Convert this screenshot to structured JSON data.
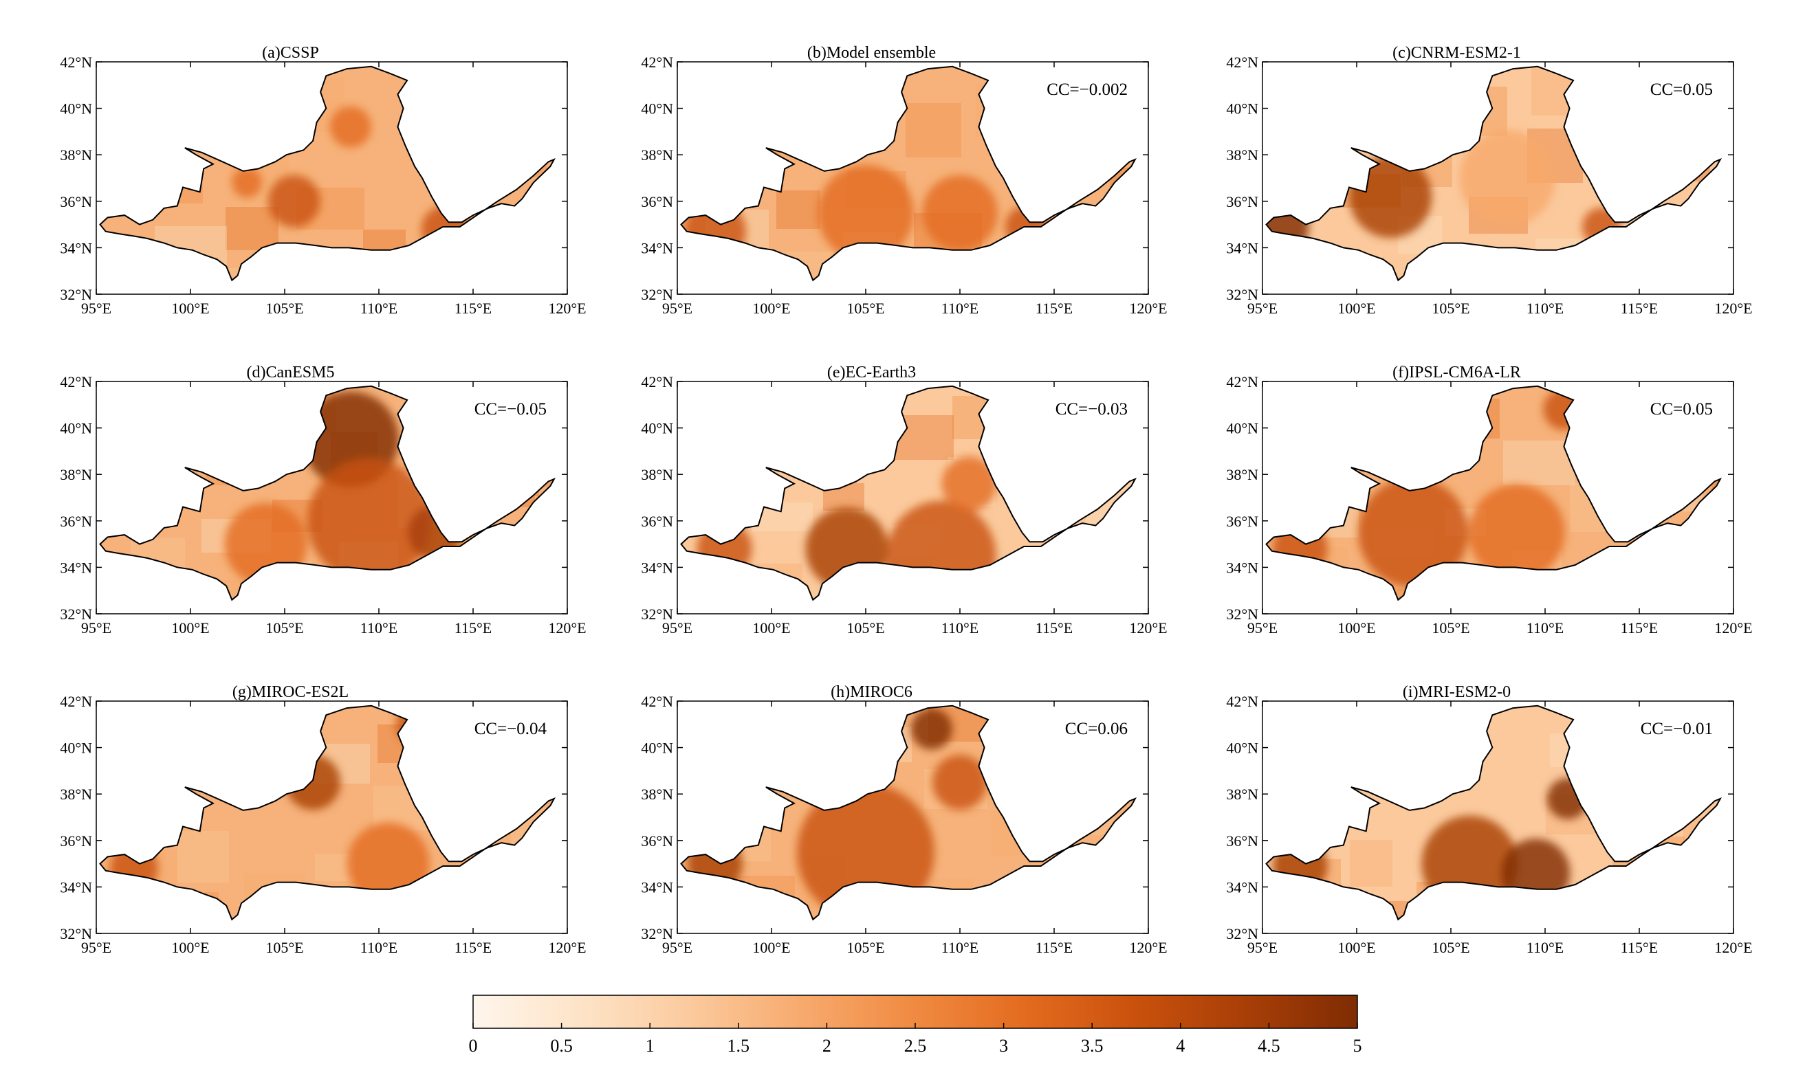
{
  "axes": {
    "lat_ticks": [
      "32°N",
      "34°N",
      "36°N",
      "38°N",
      "40°N",
      "42°N"
    ],
    "lon_ticks": [
      "95°E",
      "100°E",
      "105°E",
      "110°E",
      "115°E",
      "120°E"
    ]
  },
  "panels": [
    {
      "title": "(a)CSSP",
      "cc": ""
    },
    {
      "title": "(b)Model ensemble",
      "cc": "CC=−0.002"
    },
    {
      "title": "(c)CNRM-ESM2-1",
      "cc": "CC=0.05"
    },
    {
      "title": "(d)CanESM5",
      "cc": "CC=−0.05"
    },
    {
      "title": "(e)EC-Earth3",
      "cc": "CC=−0.03"
    },
    {
      "title": "(f)IPSL-CM6A-LR",
      "cc": "CC=0.05"
    },
    {
      "title": "(g)MIROC-ES2L",
      "cc": "CC=−0.04"
    },
    {
      "title": "(h)MIROC6",
      "cc": "CC=0.06"
    },
    {
      "title": "(i)MRI-ESM2-0",
      "cc": "CC=−0.01"
    }
  ],
  "colorbar": {
    "min": 0,
    "max": 5,
    "ticks": [
      "0",
      "0.5",
      "1",
      "1.5",
      "2",
      "2.5",
      "3",
      "3.5",
      "4",
      "4.5",
      "5"
    ],
    "colors": [
      "#fff6ec",
      "#fde3c6",
      "#fbc99c",
      "#f7a96c",
      "#f08a41",
      "#e36b1f",
      "#c9510d",
      "#a83e07",
      "#7f2c04"
    ]
  },
  "colors": {
    "basin_fill": "#f6b27a",
    "outline": "#000000"
  }
}
